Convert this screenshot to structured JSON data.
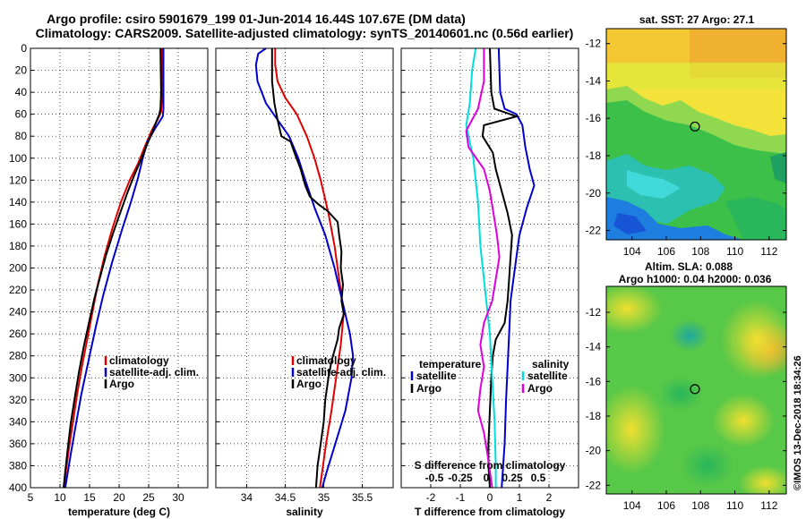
{
  "header": {
    "title_line1": "Argo profile: csiro 5901679_199 01-Jun-2014 16.44S 107.67E (DM data)",
    "title_line2": "Climatology: CARS2009. Satellite-adjusted climatology: synTS_20140601.nc (0.56d earlier)"
  },
  "colors": {
    "climatology": "#e00000",
    "satellite": "#0000cc",
    "argo": "#000000",
    "magenta": "#dd00dd",
    "cyan": "#00dddd"
  },
  "depth_axis": {
    "ticks": [
      "0",
      "20",
      "40",
      "60",
      "80",
      "100",
      "120",
      "140",
      "160",
      "180",
      "200",
      "220",
      "240",
      "260",
      "280",
      "300",
      "320",
      "340",
      "360",
      "380",
      "400"
    ]
  },
  "chart_data": [
    {
      "type": "line",
      "id": "temperature",
      "xlabel": "temperature (deg C)",
      "ylabel": "depth",
      "xlim": [
        5,
        35
      ],
      "ylim": [
        400,
        0
      ],
      "xticks": [
        "5",
        "10",
        "15",
        "20",
        "25",
        "30"
      ],
      "legend": [
        "climatology",
        "satellite-adj. clim.",
        "Argo"
      ],
      "series": [
        {
          "name": "climatology",
          "color": "#e00000",
          "points": [
            [
              27.2,
              0
            ],
            [
              27.2,
              50
            ],
            [
              27.1,
              58
            ],
            [
              26.5,
              65
            ],
            [
              25.5,
              75
            ],
            [
              24.3,
              90
            ],
            [
              23.2,
              105
            ],
            [
              21.8,
              120
            ],
            [
              20.3,
              140
            ],
            [
              18.8,
              165
            ],
            [
              17.5,
              190
            ],
            [
              16.4,
              215
            ],
            [
              15.5,
              240
            ],
            [
              14.6,
              265
            ],
            [
              13.7,
              290
            ],
            [
              12.9,
              315
            ],
            [
              12.2,
              340
            ],
            [
              11.5,
              365
            ],
            [
              11.0,
              385
            ],
            [
              10.7,
              400
            ]
          ]
        },
        {
          "name": "satellite-adj. clim.",
          "color": "#0000cc",
          "points": [
            [
              27.5,
              0
            ],
            [
              27.5,
              55
            ],
            [
              27.4,
              62
            ],
            [
              26.2,
              72
            ],
            [
              24.8,
              85
            ],
            [
              24.0,
              100
            ],
            [
              23.2,
              118
            ],
            [
              22.0,
              140
            ],
            [
              20.5,
              165
            ],
            [
              18.8,
              195
            ],
            [
              17.3,
              225
            ],
            [
              16.0,
              255
            ],
            [
              14.8,
              285
            ],
            [
              13.6,
              315
            ],
            [
              12.6,
              345
            ],
            [
              11.8,
              370
            ],
            [
              11.2,
              390
            ],
            [
              10.9,
              400
            ]
          ]
        },
        {
          "name": "Argo",
          "color": "#000000",
          "points": [
            [
              27.0,
              0
            ],
            [
              27.1,
              40
            ],
            [
              27.0,
              55
            ],
            [
              26.8,
              60
            ],
            [
              26.2,
              68
            ],
            [
              25.5,
              78
            ],
            [
              24.7,
              88
            ],
            [
              23.8,
              100
            ],
            [
              22.6,
              115
            ],
            [
              21.5,
              130
            ],
            [
              20.3,
              148
            ],
            [
              19.0,
              168
            ],
            [
              17.8,
              188
            ],
            [
              16.8,
              208
            ],
            [
              15.8,
              228
            ],
            [
              14.9,
              250
            ],
            [
              14.0,
              272
            ],
            [
              13.2,
              295
            ],
            [
              12.5,
              318
            ],
            [
              11.8,
              342
            ],
            [
              11.3,
              365
            ],
            [
              10.9,
              385
            ],
            [
              10.6,
              400
            ]
          ]
        }
      ]
    },
    {
      "type": "line",
      "id": "salinity",
      "xlabel": "salinity",
      "ylabel": "depth",
      "xlim": [
        33.6,
        35.9
      ],
      "ylim": [
        400,
        0
      ],
      "xticks": [
        "34",
        "34.5",
        "35",
        "35.5"
      ],
      "legend": [
        "climatology",
        "satellite-adj. clim.",
        "Argo"
      ],
      "series": [
        {
          "name": "climatology",
          "color": "#e00000",
          "points": [
            [
              34.37,
              0
            ],
            [
              34.37,
              15
            ],
            [
              34.4,
              30
            ],
            [
              34.5,
              45
            ],
            [
              34.65,
              60
            ],
            [
              34.78,
              80
            ],
            [
              34.88,
              100
            ],
            [
              34.96,
              120
            ],
            [
              35.06,
              150
            ],
            [
              35.14,
              180
            ],
            [
              35.2,
              210
            ],
            [
              35.26,
              240
            ],
            [
              35.22,
              270
            ],
            [
              35.16,
              300
            ],
            [
              35.1,
              330
            ],
            [
              35.03,
              360
            ],
            [
              34.98,
              385
            ],
            [
              34.95,
              400
            ]
          ]
        },
        {
          "name": "satellite-adj. clim.",
          "color": "#0000cc",
          "points": [
            [
              34.25,
              0
            ],
            [
              34.15,
              5
            ],
            [
              34.12,
              15
            ],
            [
              34.14,
              30
            ],
            [
              34.25,
              50
            ],
            [
              34.4,
              65
            ],
            [
              34.55,
              80
            ],
            [
              34.67,
              100
            ],
            [
              34.76,
              120
            ],
            [
              34.88,
              145
            ],
            [
              35.02,
              170
            ],
            [
              35.14,
              200
            ],
            [
              35.24,
              230
            ],
            [
              35.34,
              260
            ],
            [
              35.38,
              280
            ],
            [
              35.36,
              300
            ],
            [
              35.28,
              330
            ],
            [
              35.15,
              360
            ],
            [
              35.04,
              385
            ],
            [
              34.98,
              400
            ]
          ]
        },
        {
          "name": "Argo",
          "color": "#000000",
          "points": [
            [
              34.33,
              0
            ],
            [
              34.33,
              30
            ],
            [
              34.36,
              50
            ],
            [
              34.4,
              65
            ],
            [
              34.45,
              80
            ],
            [
              34.57,
              85
            ],
            [
              34.62,
              95
            ],
            [
              34.7,
              110
            ],
            [
              34.76,
              125
            ],
            [
              34.82,
              135
            ],
            [
              34.93,
              142
            ],
            [
              35.05,
              148
            ],
            [
              35.18,
              158
            ],
            [
              35.2,
              170
            ],
            [
              35.23,
              185
            ],
            [
              35.22,
              200
            ],
            [
              35.25,
              215
            ],
            [
              35.23,
              230
            ],
            [
              35.26,
              242
            ],
            [
              35.2,
              255
            ],
            [
              35.18,
              265
            ],
            [
              35.1,
              285
            ],
            [
              35.06,
              300
            ],
            [
              35.02,
              320
            ],
            [
              35.0,
              340
            ],
            [
              34.96,
              360
            ],
            [
              34.92,
              380
            ],
            [
              34.9,
              400
            ]
          ]
        }
      ]
    },
    {
      "type": "line",
      "id": "difference",
      "xlabel": "T difference from climatology",
      "xlabel_top": "S difference from climatology",
      "ylabel": "depth",
      "xlim": [
        -3,
        3
      ],
      "ylim": [
        400,
        0
      ],
      "xticks": [
        "-2",
        "-1",
        "0",
        "1",
        "2"
      ],
      "xlim_top": [
        -0.75,
        0.75
      ],
      "xticks_top": [
        "-0.5",
        "-0.25",
        "0",
        "0.25",
        "0.5"
      ],
      "legend_temperature_title": "temperature",
      "legend_temperature": [
        "satellite",
        "Argo"
      ],
      "legend_salinity_title": "salinity",
      "legend_salinity": [
        "satellite",
        "Argo"
      ],
      "series": [
        {
          "name": "T satellite",
          "color": "#0000cc",
          "points": [
            [
              0.3,
              0
            ],
            [
              0.35,
              40
            ],
            [
              0.5,
              55
            ],
            [
              0.9,
              60
            ],
            [
              1.1,
              70
            ],
            [
              1.2,
              90
            ],
            [
              1.35,
              110
            ],
            [
              1.5,
              125
            ],
            [
              1.25,
              145
            ],
            [
              1.0,
              170
            ],
            [
              0.85,
              200
            ],
            [
              0.7,
              230
            ],
            [
              0.65,
              260
            ],
            [
              0.6,
              290
            ],
            [
              0.55,
              320
            ],
            [
              0.5,
              360
            ],
            [
              0.4,
              400
            ]
          ]
        },
        {
          "name": "T Argo",
          "color": "#000000",
          "points": [
            [
              0.0,
              0
            ],
            [
              0.05,
              40
            ],
            [
              0.15,
              55
            ],
            [
              0.9,
              62
            ],
            [
              -0.2,
              70
            ],
            [
              -0.25,
              80
            ],
            [
              0.1,
              95
            ],
            [
              0.2,
              110
            ],
            [
              0.4,
              130
            ],
            [
              0.6,
              150
            ],
            [
              0.75,
              170
            ],
            [
              0.7,
              190
            ],
            [
              0.65,
              210
            ],
            [
              0.6,
              230
            ],
            [
              0.5,
              250
            ],
            [
              0.2,
              265
            ],
            [
              0.1,
              280
            ],
            [
              0.05,
              300
            ],
            [
              0.0,
              330
            ],
            [
              -0.05,
              360
            ],
            [
              -0.05,
              380
            ],
            [
              0.0,
              400
            ]
          ]
        },
        {
          "name": "S satellite",
          "color": "#00dddd",
          "points": [
            [
              -0.12,
              0
            ],
            [
              -0.15,
              20
            ],
            [
              -0.17,
              50
            ],
            [
              -0.2,
              70
            ],
            [
              -0.14,
              100
            ],
            [
              -0.1,
              140
            ],
            [
              -0.08,
              180
            ],
            [
              -0.03,
              230
            ],
            [
              0.0,
              260
            ],
            [
              0.02,
              300
            ],
            [
              0.04,
              340
            ],
            [
              0.05,
              380
            ],
            [
              0.05,
              400
            ]
          ]
        },
        {
          "name": "S Argo",
          "color": "#dd00dd",
          "points": [
            [
              -0.05,
              0
            ],
            [
              -0.05,
              30
            ],
            [
              -0.1,
              55
            ],
            [
              -0.2,
              75
            ],
            [
              -0.18,
              90
            ],
            [
              -0.05,
              110
            ],
            [
              0.0,
              130
            ],
            [
              0.03,
              150
            ],
            [
              0.06,
              170
            ],
            [
              0.08,
              190
            ],
            [
              0.05,
              210
            ],
            [
              0.02,
              230
            ],
            [
              -0.05,
              250
            ],
            [
              -0.08,
              270
            ],
            [
              -0.05,
              290
            ],
            [
              -0.08,
              310
            ],
            [
              -0.1,
              330
            ],
            [
              -0.05,
              350
            ],
            [
              -0.02,
              370
            ],
            [
              0.0,
              385
            ],
            [
              0.02,
              400
            ]
          ]
        }
      ]
    }
  ],
  "maps": {
    "top": {
      "title": "sat. SST: 27 Argo: 27.1",
      "yticks": [
        "-12",
        "-14",
        "-16",
        "-18",
        "-20",
        "-22"
      ],
      "xticks": [
        "104",
        "106",
        "108",
        "110",
        "112"
      ],
      "lat_range": [
        -22.5,
        -11.2
      ],
      "lon_range": [
        102.5,
        113
      ],
      "argo_lon": 107.67,
      "argo_lat": -16.44
    },
    "bottom": {
      "title_line1": "Altim. SLA: 0.088",
      "title_line2": "Argo h1000: 0.04 h2000: 0.036",
      "yticks": [
        "-12",
        "-14",
        "-16",
        "-18",
        "-20",
        "-22"
      ],
      "xticks": [
        "104",
        "106",
        "108",
        "110",
        "112"
      ],
      "lat_range": [
        -22.5,
        -10.5
      ],
      "lon_range": [
        102.5,
        113
      ],
      "argo_lon": 107.67,
      "argo_lat": -16.44
    }
  },
  "footer": {
    "stamp": "©IMOS 13-Dec-2018 18:34:26"
  }
}
